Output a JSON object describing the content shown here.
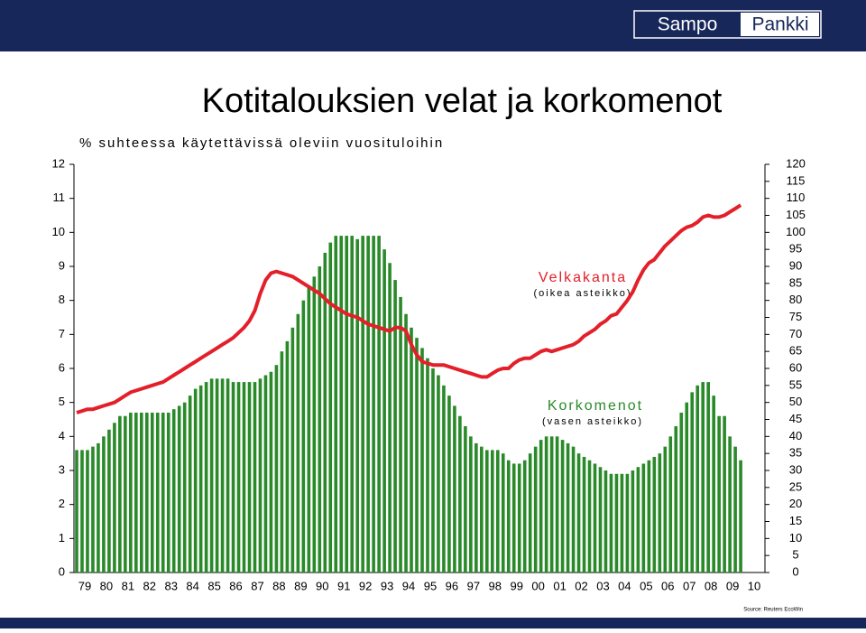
{
  "header": {
    "logo_left": "Sampo",
    "logo_right": "Pankki"
  },
  "chart_data": {
    "type": "bar_line",
    "title": "Kotitalouksien velat ja korkomenot",
    "subtitle": "% suhteessa käytettävissä oleviin vuosituloihin",
    "xticks": [
      "79",
      "80",
      "81",
      "82",
      "83",
      "84",
      "85",
      "86",
      "87",
      "88",
      "89",
      "90",
      "91",
      "92",
      "93",
      "94",
      "95",
      "96",
      "97",
      "98",
      "99",
      "00",
      "01",
      "02",
      "03",
      "04",
      "05",
      "06",
      "07",
      "08",
      "09",
      "10"
    ],
    "ylim": [
      0,
      12
    ],
    "yticks": [
      0,
      1,
      2,
      3,
      4,
      5,
      6,
      7,
      8,
      9,
      10,
      11,
      12
    ],
    "y2lim": [
      0,
      120
    ],
    "y2ticks": [
      0,
      5,
      10,
      15,
      20,
      25,
      30,
      35,
      40,
      45,
      50,
      55,
      60,
      65,
      70,
      75,
      80,
      85,
      90,
      95,
      100,
      105,
      110,
      115,
      120
    ],
    "series": [
      {
        "name": "Korkomenot",
        "type": "bar",
        "axis": "y",
        "color": "#2a8a2a",
        "values": [
          3.6,
          3.6,
          3.6,
          3.7,
          3.8,
          4.0,
          4.2,
          4.4,
          4.6,
          4.6,
          4.7,
          4.7,
          4.7,
          4.7,
          4.7,
          4.7,
          4.7,
          4.7,
          4.8,
          4.9,
          5.0,
          5.2,
          5.4,
          5.5,
          5.6,
          5.7,
          5.7,
          5.7,
          5.7,
          5.6,
          5.6,
          5.6,
          5.6,
          5.6,
          5.7,
          5.8,
          5.9,
          6.1,
          6.5,
          6.8,
          7.2,
          7.6,
          8.0,
          8.4,
          8.7,
          9.0,
          9.4,
          9.7,
          9.9,
          9.9,
          9.9,
          9.9,
          9.8,
          9.9,
          9.9,
          9.9,
          9.9,
          9.5,
          9.1,
          8.6,
          8.1,
          7.6,
          7.2,
          6.9,
          6.6,
          6.3,
          6.0,
          5.8,
          5.5,
          5.2,
          4.9,
          4.6,
          4.3,
          4.0,
          3.8,
          3.7,
          3.6,
          3.6,
          3.6,
          3.5,
          3.3,
          3.2,
          3.2,
          3.3,
          3.5,
          3.7,
          3.9,
          4.0,
          4.0,
          4.0,
          3.9,
          3.8,
          3.7,
          3.5,
          3.4,
          3.3,
          3.2,
          3.1,
          3.0,
          2.9,
          2.9,
          2.9,
          2.9,
          3.0,
          3.1,
          3.2,
          3.3,
          3.4,
          3.5,
          3.7,
          4.0,
          4.3,
          4.7,
          5.0,
          5.3,
          5.5,
          5.6,
          5.6,
          5.2,
          4.6,
          4.6,
          4.0,
          3.7,
          3.3
        ]
      },
      {
        "name": "Velkakanta",
        "type": "line",
        "axis": "y2",
        "color": "#e3202a",
        "values": [
          47,
          47.5,
          48,
          48,
          48.5,
          49,
          49.5,
          50,
          51,
          52,
          53,
          53.5,
          54,
          54.5,
          55,
          55.5,
          56,
          57,
          58,
          59,
          60,
          61,
          62,
          63,
          64,
          65,
          66,
          67,
          68,
          69,
          70.5,
          72,
          74,
          77,
          82,
          86,
          88,
          88.5,
          88,
          87.5,
          87,
          86,
          85,
          84,
          83,
          82,
          80.5,
          79,
          78,
          77,
          76,
          75.5,
          75,
          74,
          73,
          72.5,
          72,
          71.5,
          71,
          72,
          72,
          71,
          67,
          64,
          62,
          61.5,
          61,
          61,
          61,
          60.5,
          60,
          59.5,
          59,
          58.5,
          58,
          57.5,
          57.5,
          58.5,
          59.5,
          60,
          60,
          61.5,
          62.5,
          63,
          63,
          64,
          65,
          65.5,
          65,
          65.5,
          66,
          66.5,
          67,
          68,
          69.5,
          70.5,
          71.5,
          73,
          74,
          75.5,
          76,
          78,
          80,
          82.5,
          86,
          89,
          91,
          92,
          94,
          96,
          97.5,
          99,
          100.5,
          101.5,
          102,
          103,
          104.5,
          105,
          104.5,
          104.5,
          105,
          106,
          107,
          108
        ]
      }
    ],
    "annotations": [
      "Velkakanta",
      "(oikea asteikko)",
      "Korkomenot",
      "(vasen asteikko)"
    ],
    "source": "Source: Reuters EcoWin"
  }
}
